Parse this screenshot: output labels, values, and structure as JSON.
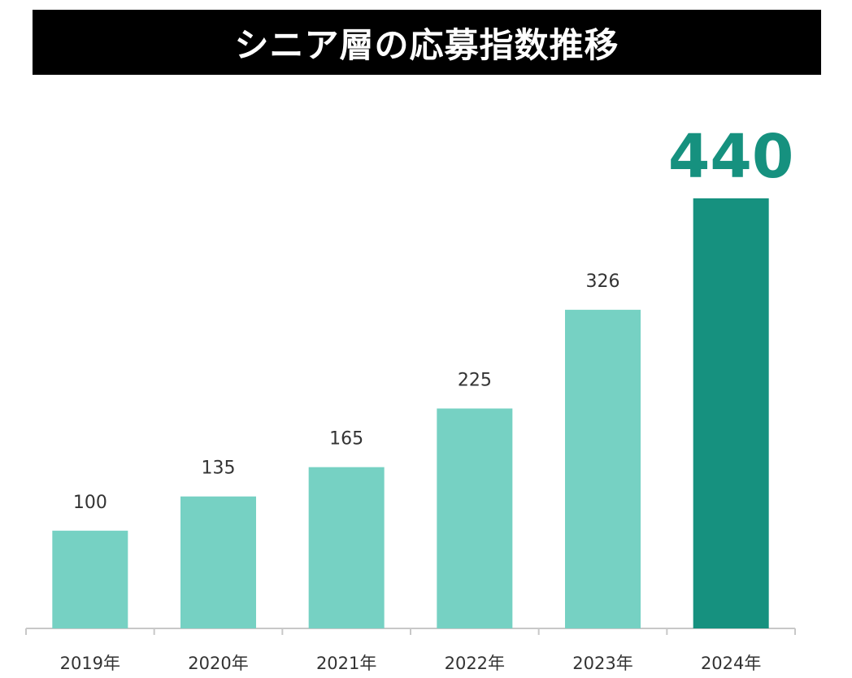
{
  "title": "シニア層の応募指数推移",
  "colors": {
    "bar": "#76d1c3",
    "highlight_bar": "#16917f",
    "highlight_label": "#16917f",
    "label": "#333333",
    "axis": "#c8c8c8",
    "title_bg": "#000000",
    "title_text": "#ffffff"
  },
  "chart_data": {
    "type": "bar",
    "title": "シニア層の応募指数推移",
    "categories": [
      "2019年",
      "2020年",
      "2021年",
      "2022年",
      "2023年",
      "2024年"
    ],
    "values": [
      100,
      135,
      165,
      225,
      326,
      440
    ],
    "data_labels": [
      "100",
      "135",
      "165",
      "225",
      "326",
      "440"
    ],
    "highlight_index": 5,
    "ylim": [
      0,
      440
    ],
    "grid": false,
    "legend": "none",
    "xlabel": "",
    "ylabel": ""
  }
}
